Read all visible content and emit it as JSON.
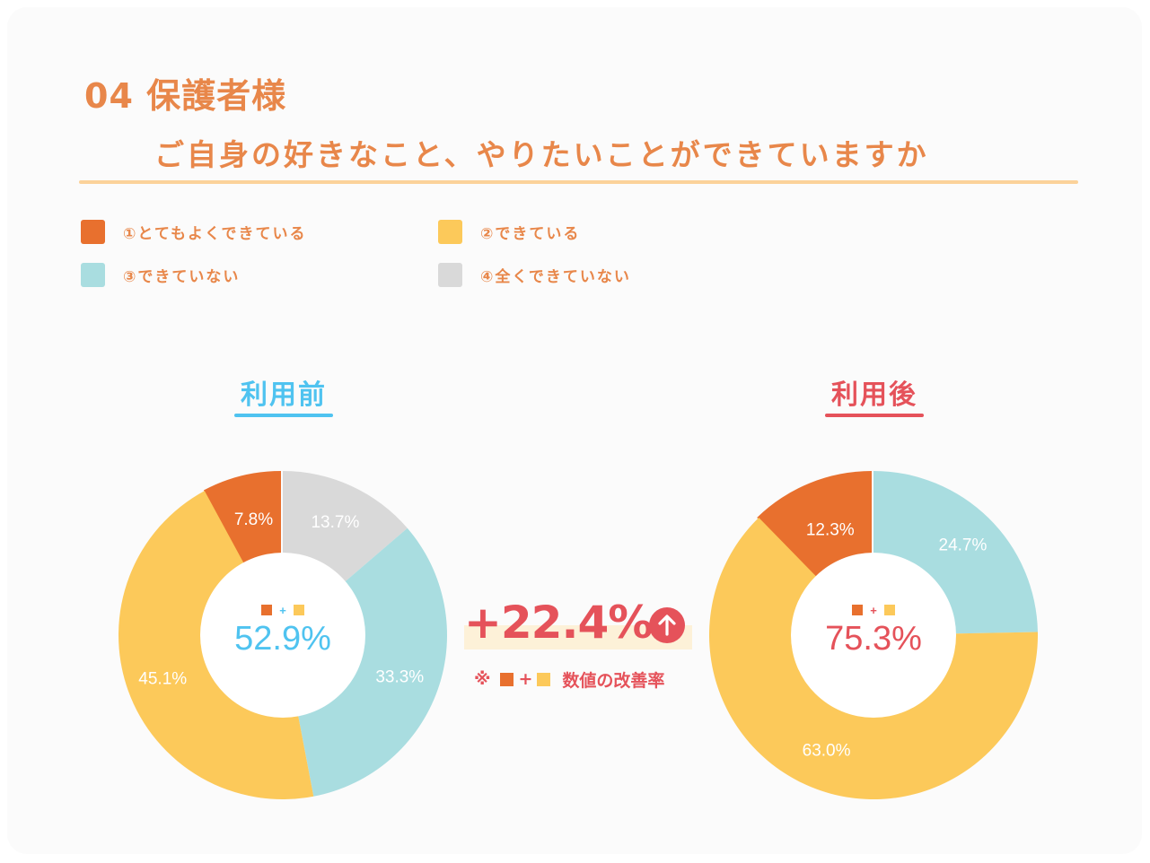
{
  "title": {
    "line1": "04 保護者様",
    "line2": "ご自身の好きなこと、やりたいことができていますか"
  },
  "colors": {
    "c1": "#e8702e",
    "c2": "#fcc95a",
    "c3": "#a9dde0",
    "c4": "#d9d9d9",
    "before_accent": "#4fc3f0",
    "after_accent": "#e5525a"
  },
  "legend": [
    {
      "label": "①とてもよくできている",
      "color": "#e8702e"
    },
    {
      "label": "②できている",
      "color": "#fcc95a"
    },
    {
      "label": "③できていない",
      "color": "#a9dde0"
    },
    {
      "label": "④全くできていない",
      "color": "#d9d9d9"
    }
  ],
  "chart_data": [
    {
      "type": "pie",
      "title": "利用前",
      "series": [
        {
          "category": "①とてもよくできている",
          "value": 7.8,
          "label": "7.8%"
        },
        {
          "category": "②できている",
          "value": 45.1,
          "label": "45.1%"
        },
        {
          "category": "③できていない",
          "value": 33.3,
          "label": "33.3%"
        },
        {
          "category": "④全くできていない",
          "value": 13.7,
          "label": "13.7%"
        }
      ],
      "center_value": "52.9%"
    },
    {
      "type": "pie",
      "title": "利用後",
      "series": [
        {
          "category": "①とてもよくできている",
          "value": 12.3,
          "label": "12.3%"
        },
        {
          "category": "②できている",
          "value": 63.0,
          "label": "63.0%"
        },
        {
          "category": "③できていない",
          "value": 24.7,
          "label": "24.7%"
        }
      ],
      "center_value": "75.3%"
    }
  ],
  "comparison": {
    "delta": "+22.4%",
    "note_prefix": "※",
    "note_plus": "+",
    "note_text": "数値の改善率",
    "center_plus": "+"
  }
}
